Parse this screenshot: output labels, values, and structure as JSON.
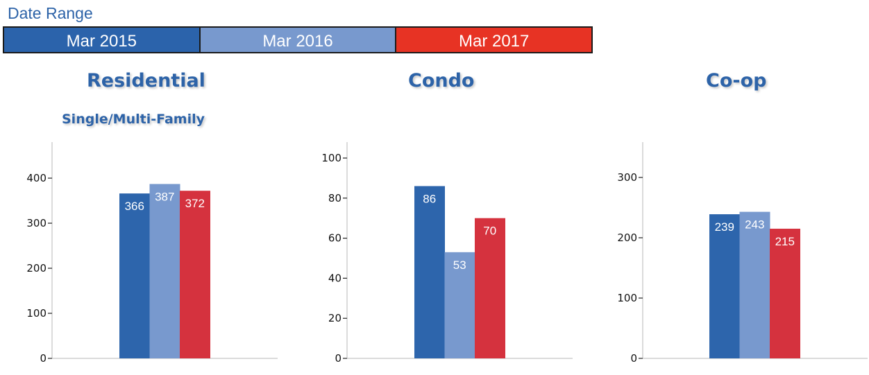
{
  "date_range": {
    "label": "Date Range",
    "items": [
      {
        "label": "Mar 2015",
        "color": "#2b63ab"
      },
      {
        "label": "Mar 2016",
        "color": "#7899ce"
      },
      {
        "label": "Mar 2017",
        "color": "#e73324"
      }
    ]
  },
  "titles": {
    "residential": "Residential",
    "residential_sub": "Single/Multi-Family",
    "condo": "Condo",
    "coop": "Co-op"
  },
  "bar_colors": [
    "#2d65ac",
    "#7899ce",
    "#d5323e"
  ],
  "chart_data": [
    {
      "type": "bar",
      "title": "Residential",
      "subtitle": "Single/Multi-Family",
      "categories": [
        "Mar 2015",
        "Mar 2016",
        "Mar 2017"
      ],
      "values": [
        366,
        387,
        372
      ],
      "yticks": [
        0,
        100,
        200,
        300,
        400
      ],
      "ylim": [
        0,
        480
      ],
      "xlabel": "",
      "ylabel": "",
      "grid": false,
      "legend_position": "top"
    },
    {
      "type": "bar",
      "title": "Condo",
      "categories": [
        "Mar 2015",
        "Mar 2016",
        "Mar 2017"
      ],
      "values": [
        86,
        53,
        70
      ],
      "yticks": [
        0,
        20,
        40,
        60,
        80,
        100
      ],
      "ylim": [
        0,
        108
      ],
      "xlabel": "",
      "ylabel": "",
      "grid": false,
      "legend_position": "top"
    },
    {
      "type": "bar",
      "title": "Co-op",
      "categories": [
        "Mar 2015",
        "Mar 2016",
        "Mar 2017"
      ],
      "values": [
        239,
        243,
        215
      ],
      "yticks": [
        0,
        100,
        200,
        300
      ],
      "ylim": [
        0,
        360
      ],
      "xlabel": "",
      "ylabel": "",
      "grid": false,
      "legend_position": "top"
    }
  ]
}
